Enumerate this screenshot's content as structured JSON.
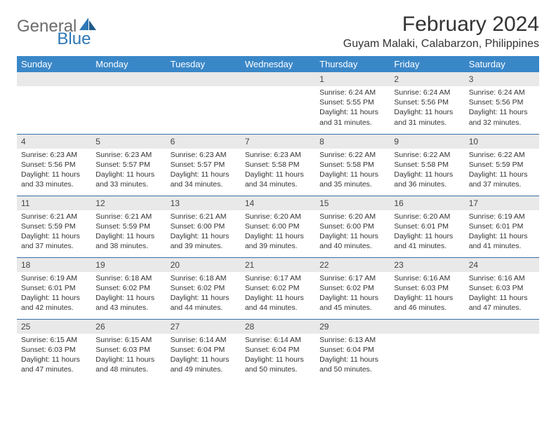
{
  "logo": {
    "part1": "General",
    "part2": "Blue"
  },
  "title": "February 2024",
  "location": "Guyam Malaki, Calabarzon, Philippines",
  "colors": {
    "header_bg": "#3a87c8",
    "header_text": "#ffffff",
    "daynum_bg": "#e9e9e9",
    "border": "#3a6ea5",
    "logo_gray": "#6b6b6b",
    "logo_blue": "#2e78b7"
  },
  "weekdays": [
    "Sunday",
    "Monday",
    "Tuesday",
    "Wednesday",
    "Thursday",
    "Friday",
    "Saturday"
  ],
  "weeks": [
    [
      null,
      null,
      null,
      null,
      {
        "n": "1",
        "sr": "6:24 AM",
        "ss": "5:55 PM",
        "dl": "11 hours and 31 minutes."
      },
      {
        "n": "2",
        "sr": "6:24 AM",
        "ss": "5:56 PM",
        "dl": "11 hours and 31 minutes."
      },
      {
        "n": "3",
        "sr": "6:24 AM",
        "ss": "5:56 PM",
        "dl": "11 hours and 32 minutes."
      }
    ],
    [
      {
        "n": "4",
        "sr": "6:23 AM",
        "ss": "5:56 PM",
        "dl": "11 hours and 33 minutes."
      },
      {
        "n": "5",
        "sr": "6:23 AM",
        "ss": "5:57 PM",
        "dl": "11 hours and 33 minutes."
      },
      {
        "n": "6",
        "sr": "6:23 AM",
        "ss": "5:57 PM",
        "dl": "11 hours and 34 minutes."
      },
      {
        "n": "7",
        "sr": "6:23 AM",
        "ss": "5:58 PM",
        "dl": "11 hours and 34 minutes."
      },
      {
        "n": "8",
        "sr": "6:22 AM",
        "ss": "5:58 PM",
        "dl": "11 hours and 35 minutes."
      },
      {
        "n": "9",
        "sr": "6:22 AM",
        "ss": "5:58 PM",
        "dl": "11 hours and 36 minutes."
      },
      {
        "n": "10",
        "sr": "6:22 AM",
        "ss": "5:59 PM",
        "dl": "11 hours and 37 minutes."
      }
    ],
    [
      {
        "n": "11",
        "sr": "6:21 AM",
        "ss": "5:59 PM",
        "dl": "11 hours and 37 minutes."
      },
      {
        "n": "12",
        "sr": "6:21 AM",
        "ss": "5:59 PM",
        "dl": "11 hours and 38 minutes."
      },
      {
        "n": "13",
        "sr": "6:21 AM",
        "ss": "6:00 PM",
        "dl": "11 hours and 39 minutes."
      },
      {
        "n": "14",
        "sr": "6:20 AM",
        "ss": "6:00 PM",
        "dl": "11 hours and 39 minutes."
      },
      {
        "n": "15",
        "sr": "6:20 AM",
        "ss": "6:00 PM",
        "dl": "11 hours and 40 minutes."
      },
      {
        "n": "16",
        "sr": "6:20 AM",
        "ss": "6:01 PM",
        "dl": "11 hours and 41 minutes."
      },
      {
        "n": "17",
        "sr": "6:19 AM",
        "ss": "6:01 PM",
        "dl": "11 hours and 41 minutes."
      }
    ],
    [
      {
        "n": "18",
        "sr": "6:19 AM",
        "ss": "6:01 PM",
        "dl": "11 hours and 42 minutes."
      },
      {
        "n": "19",
        "sr": "6:18 AM",
        "ss": "6:02 PM",
        "dl": "11 hours and 43 minutes."
      },
      {
        "n": "20",
        "sr": "6:18 AM",
        "ss": "6:02 PM",
        "dl": "11 hours and 44 minutes."
      },
      {
        "n": "21",
        "sr": "6:17 AM",
        "ss": "6:02 PM",
        "dl": "11 hours and 44 minutes."
      },
      {
        "n": "22",
        "sr": "6:17 AM",
        "ss": "6:02 PM",
        "dl": "11 hours and 45 minutes."
      },
      {
        "n": "23",
        "sr": "6:16 AM",
        "ss": "6:03 PM",
        "dl": "11 hours and 46 minutes."
      },
      {
        "n": "24",
        "sr": "6:16 AM",
        "ss": "6:03 PM",
        "dl": "11 hours and 47 minutes."
      }
    ],
    [
      {
        "n": "25",
        "sr": "6:15 AM",
        "ss": "6:03 PM",
        "dl": "11 hours and 47 minutes."
      },
      {
        "n": "26",
        "sr": "6:15 AM",
        "ss": "6:03 PM",
        "dl": "11 hours and 48 minutes."
      },
      {
        "n": "27",
        "sr": "6:14 AM",
        "ss": "6:04 PM",
        "dl": "11 hours and 49 minutes."
      },
      {
        "n": "28",
        "sr": "6:14 AM",
        "ss": "6:04 PM",
        "dl": "11 hours and 50 minutes."
      },
      {
        "n": "29",
        "sr": "6:13 AM",
        "ss": "6:04 PM",
        "dl": "11 hours and 50 minutes."
      },
      null,
      null
    ]
  ],
  "labels": {
    "sunrise": "Sunrise: ",
    "sunset": "Sunset: ",
    "daylight": "Daylight: "
  }
}
